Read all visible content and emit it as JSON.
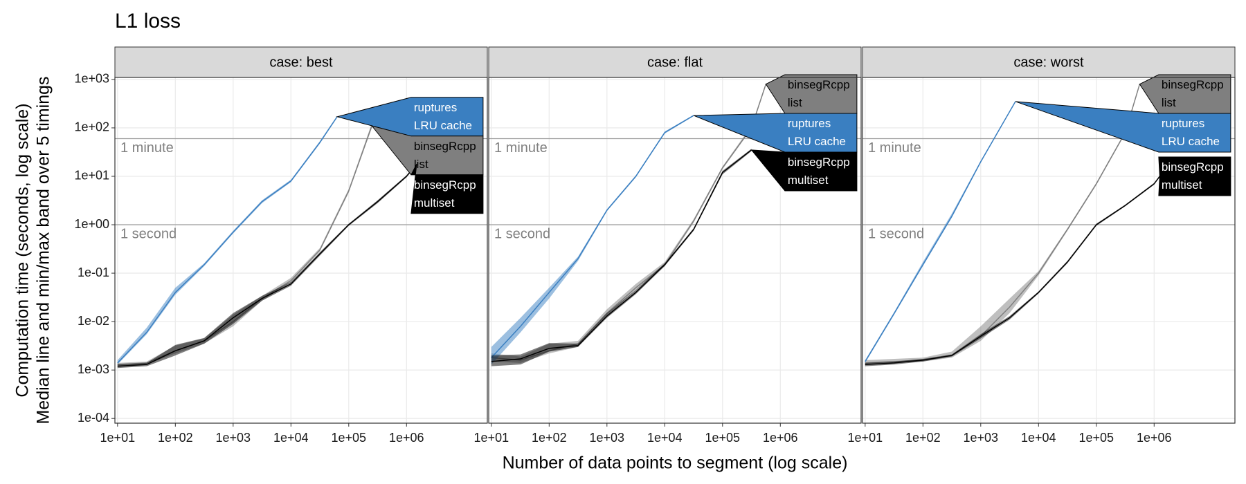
{
  "title": "L1 loss",
  "y_label": [
    "Computation time (seconds, log scale)",
    "Median line and min/max band over 5 timings"
  ],
  "x_label": "Number of data points to segment (log scale)",
  "chart_data": [
    {
      "type": "line",
      "facet": "case: best",
      "log_x": true,
      "log_y": true,
      "grid": true,
      "xlim": [
        9,
        25000000
      ],
      "ylim": [
        8e-05,
        1100
      ],
      "xticks": [
        {
          "value": 10,
          "label": "1e+01"
        },
        {
          "value": 100,
          "label": "1e+02"
        },
        {
          "value": 1000,
          "label": "1e+03"
        },
        {
          "value": 10000,
          "label": "1e+04"
        },
        {
          "value": 100000,
          "label": "1e+05"
        },
        {
          "value": 1000000,
          "label": "1e+06"
        }
      ],
      "yticks": [
        {
          "value": 0.0001,
          "label": "1e-04"
        },
        {
          "value": 0.001,
          "label": "1e-03"
        },
        {
          "value": 0.01,
          "label": "1e-02"
        },
        {
          "value": 0.1,
          "label": "1e-01"
        },
        {
          "value": 1,
          "label": "1e+00"
        },
        {
          "value": 10,
          "label": "1e+01"
        },
        {
          "value": 100,
          "label": "1e+02"
        },
        {
          "value": 1000,
          "label": "1e+03"
        }
      ],
      "hlines": [
        {
          "value": 1,
          "label": "1 second"
        },
        {
          "value": 60,
          "label": "1 minute"
        }
      ],
      "series": [
        {
          "name": "ruptures LRU cache",
          "color": "#3a7fc1",
          "x": [
            10,
            32,
            100,
            316,
            1000,
            3162,
            10000,
            31623,
            63096
          ],
          "values": [
            0.0014,
            0.006,
            0.04,
            0.15,
            0.7,
            3,
            8,
            50,
            170
          ],
          "min": [
            0.0013,
            0.0055,
            0.036,
            0.14,
            0.66,
            2.8,
            7.6,
            47,
            165
          ],
          "max": [
            0.0016,
            0.0075,
            0.05,
            0.16,
            0.75,
            3.2,
            8.5,
            53,
            178
          ]
        },
        {
          "name": "binsegRcpp list",
          "color": "#7f7f7f",
          "x": [
            10,
            32,
            100,
            316,
            1000,
            3162,
            10000,
            31623,
            100000,
            251189
          ],
          "values": [
            0.0013,
            0.0014,
            0.0025,
            0.004,
            0.01,
            0.03,
            0.07,
            0.3,
            5,
            110
          ],
          "min": [
            0.0012,
            0.0013,
            0.0022,
            0.0035,
            0.008,
            0.027,
            0.065,
            0.28,
            4.6,
            100
          ],
          "max": [
            0.0014,
            0.0015,
            0.0032,
            0.0045,
            0.014,
            0.034,
            0.08,
            0.33,
            5.5,
            125
          ]
        },
        {
          "name": "binsegRcpp multiset",
          "color": "#000000",
          "x": [
            10,
            32,
            100,
            316,
            1000,
            3162,
            10000,
            31623,
            100000,
            316228,
            1000000,
            1500000
          ],
          "values": [
            0.0012,
            0.0013,
            0.0025,
            0.004,
            0.012,
            0.03,
            0.06,
            0.25,
            1,
            3,
            10,
            18
          ],
          "min": [
            0.0011,
            0.0012,
            0.002,
            0.0035,
            0.009,
            0.027,
            0.055,
            0.23,
            0.95,
            2.8,
            9.5,
            17
          ],
          "max": [
            0.0013,
            0.0014,
            0.0033,
            0.0046,
            0.015,
            0.034,
            0.066,
            0.27,
            1.05,
            3.2,
            10.5,
            19
          ]
        }
      ]
    },
    {
      "type": "line",
      "facet": "case: flat",
      "log_x": true,
      "log_y": true,
      "grid": true,
      "xlim": [
        9,
        25000000
      ],
      "ylim": [
        8e-05,
        1100
      ],
      "xticks": [
        {
          "value": 10,
          "label": "1e+01"
        },
        {
          "value": 100,
          "label": "1e+02"
        },
        {
          "value": 1000,
          "label": "1e+03"
        },
        {
          "value": 10000,
          "label": "1e+04"
        },
        {
          "value": 100000,
          "label": "1e+05"
        },
        {
          "value": 1000000,
          "label": "1e+06"
        }
      ],
      "yticks": [
        {
          "value": 0.0001,
          "label": "1e-04"
        },
        {
          "value": 0.001,
          "label": "1e-03"
        },
        {
          "value": 0.01,
          "label": "1e-02"
        },
        {
          "value": 0.1,
          "label": "1e-01"
        },
        {
          "value": 1,
          "label": "1e+00"
        },
        {
          "value": 10,
          "label": "1e+01"
        },
        {
          "value": 100,
          "label": "1e+02"
        },
        {
          "value": 1000,
          "label": "1e+03"
        }
      ],
      "hlines": [
        {
          "value": 1,
          "label": "1 second"
        },
        {
          "value": 60,
          "label": "1 minute"
        }
      ],
      "series": [
        {
          "name": "binsegRcpp list",
          "color": "#7f7f7f",
          "x": [
            10,
            32,
            100,
            316,
            1000,
            3162,
            10000,
            31623,
            100000,
            316228,
            562341
          ],
          "values": [
            0.0018,
            0.0016,
            0.0025,
            0.0035,
            0.015,
            0.05,
            0.15,
            1.2,
            15,
            100,
            800
          ],
          "min": [
            0.0015,
            0.0014,
            0.0022,
            0.003,
            0.013,
            0.045,
            0.14,
            1.1,
            14,
            95,
            750
          ],
          "max": [
            0.0022,
            0.0019,
            0.0035,
            0.004,
            0.018,
            0.06,
            0.17,
            1.3,
            16,
            110,
            850
          ]
        },
        {
          "name": "ruptures LRU cache",
          "color": "#3a7fc1",
          "x": [
            10,
            32,
            100,
            316,
            1000,
            3162,
            10000,
            31623
          ],
          "values": [
            0.0018,
            0.008,
            0.04,
            0.2,
            2,
            10,
            80,
            180
          ],
          "min": [
            0.0013,
            0.006,
            0.03,
            0.18,
            1.9,
            9.5,
            76,
            175
          ],
          "max": [
            0.003,
            0.012,
            0.05,
            0.22,
            2.1,
            10.5,
            84,
            186
          ]
        },
        {
          "name": "binsegRcpp multiset",
          "color": "#000000",
          "x": [
            10,
            32,
            100,
            316,
            1000,
            3162,
            10000,
            31623,
            100000,
            316228
          ],
          "values": [
            0.0015,
            0.0017,
            0.0028,
            0.0032,
            0.013,
            0.04,
            0.15,
            0.8,
            12,
            35
          ],
          "min": [
            0.0012,
            0.0013,
            0.0024,
            0.003,
            0.012,
            0.037,
            0.14,
            0.75,
            11,
            33
          ],
          "max": [
            0.002,
            0.0021,
            0.0036,
            0.0035,
            0.015,
            0.045,
            0.16,
            0.85,
            13,
            37
          ]
        }
      ]
    },
    {
      "type": "line",
      "facet": "case: worst",
      "log_x": true,
      "log_y": true,
      "grid": true,
      "xlim": [
        9,
        25000000
      ],
      "ylim": [
        8e-05,
        1100
      ],
      "xticks": [
        {
          "value": 10,
          "label": "1e+01"
        },
        {
          "value": 100,
          "label": "1e+02"
        },
        {
          "value": 1000,
          "label": "1e+03"
        },
        {
          "value": 10000,
          "label": "1e+04"
        },
        {
          "value": 100000,
          "label": "1e+05"
        },
        {
          "value": 1000000,
          "label": "1e+06"
        }
      ],
      "yticks": [
        {
          "value": 0.0001,
          "label": "1e-04"
        },
        {
          "value": 0.001,
          "label": "1e-03"
        },
        {
          "value": 0.01,
          "label": "1e-02"
        },
        {
          "value": 0.1,
          "label": "1e-01"
        },
        {
          "value": 1,
          "label": "1e+00"
        },
        {
          "value": 10,
          "label": "1e+01"
        },
        {
          "value": 100,
          "label": "1e+02"
        },
        {
          "value": 1000,
          "label": "1e+03"
        }
      ],
      "hlines": [
        {
          "value": 1,
          "label": "1 second"
        },
        {
          "value": 60,
          "label": "1 minute"
        }
      ],
      "series": [
        {
          "name": "binsegRcpp list",
          "color": "#7f7f7f",
          "x": [
            10,
            32,
            100,
            316,
            1000,
            3162,
            10000,
            31623,
            100000,
            316228,
            562341
          ],
          "values": [
            0.0014,
            0.0015,
            0.0016,
            0.002,
            0.005,
            0.02,
            0.1,
            0.8,
            7,
            80,
            800
          ],
          "min": [
            0.0013,
            0.0014,
            0.0015,
            0.0018,
            0.004,
            0.015,
            0.09,
            0.75,
            6.6,
            76,
            760
          ],
          "max": [
            0.0016,
            0.0017,
            0.0018,
            0.0024,
            0.008,
            0.03,
            0.11,
            0.85,
            7.4,
            85,
            840
          ]
        },
        {
          "name": "ruptures LRU cache",
          "color": "#3a7fc1",
          "x": [
            10,
            32,
            100,
            316,
            1000,
            3981
          ],
          "values": [
            0.0015,
            0.015,
            0.15,
            1.5,
            20,
            350
          ],
          "min": [
            0.0014,
            0.014,
            0.14,
            1.4,
            19,
            340
          ],
          "max": [
            0.0016,
            0.016,
            0.17,
            1.7,
            21,
            360
          ]
        },
        {
          "name": "binsegRcpp multiset",
          "color": "#000000",
          "x": [
            10,
            32,
            100,
            316,
            1000,
            3162,
            10000,
            31623,
            100000,
            316228,
            1000000,
            1250000
          ],
          "values": [
            0.0013,
            0.0014,
            0.0016,
            0.002,
            0.005,
            0.012,
            0.04,
            0.17,
            1,
            2.5,
            7,
            10
          ],
          "min": [
            0.0012,
            0.0013,
            0.0015,
            0.0019,
            0.0045,
            0.011,
            0.038,
            0.16,
            0.95,
            2.4,
            6.7,
            9.6
          ],
          "max": [
            0.0014,
            0.0015,
            0.0017,
            0.0021,
            0.0055,
            0.013,
            0.042,
            0.18,
            1.05,
            2.6,
            7.3,
            10.4
          ]
        }
      ]
    }
  ]
}
